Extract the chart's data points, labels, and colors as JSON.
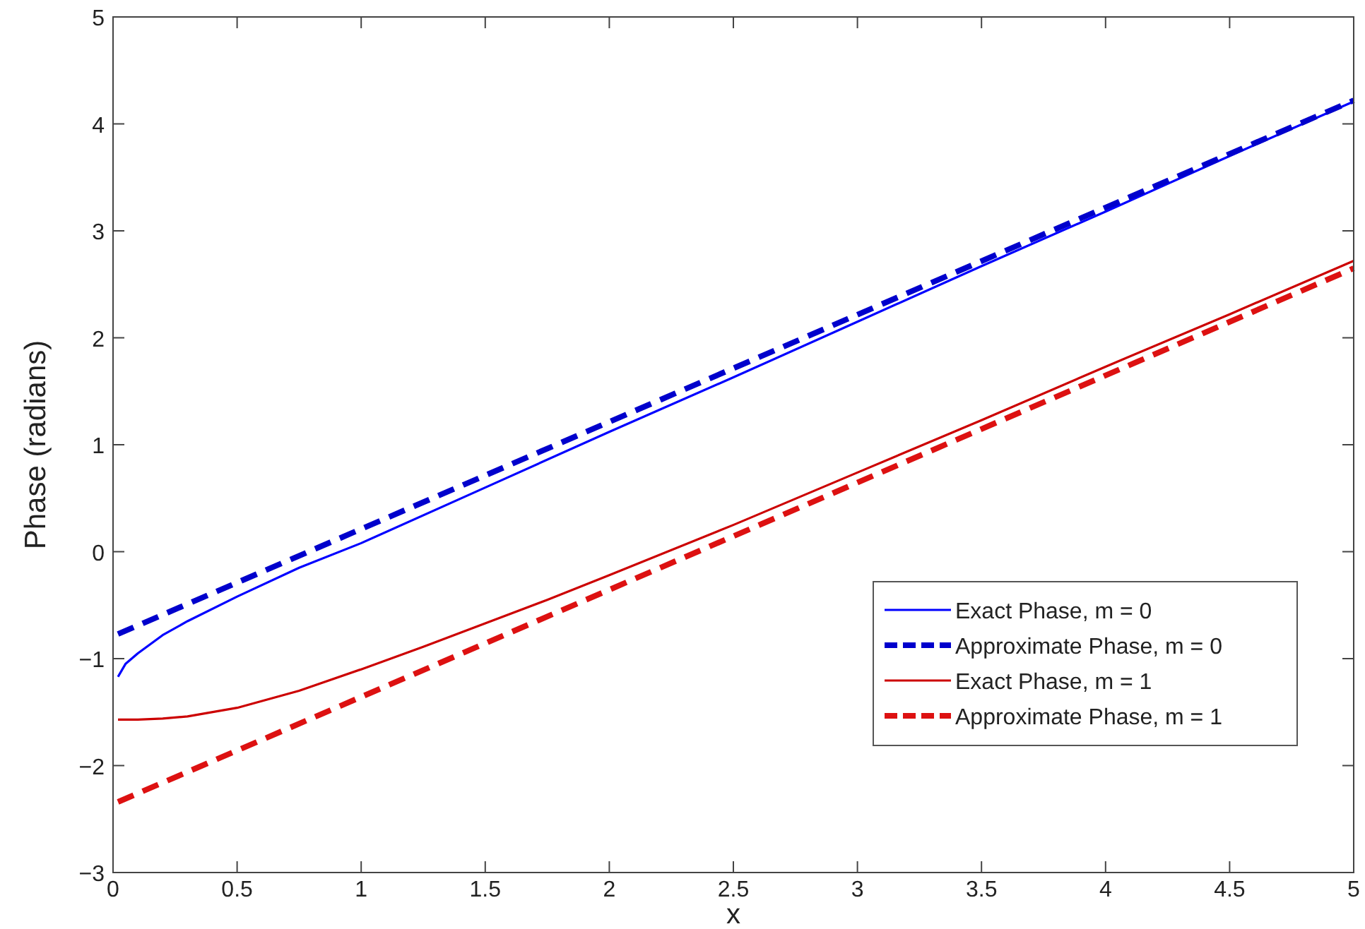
{
  "chart_data": {
    "type": "line",
    "xlabel": "x",
    "ylabel": "Phase (radians)",
    "xlim": [
      0,
      5
    ],
    "ylim": [
      -3,
      5
    ],
    "xticks": [
      0,
      0.5,
      1,
      1.5,
      2,
      2.5,
      3,
      3.5,
      4,
      4.5,
      5
    ],
    "yticks": [
      -3,
      -2,
      -1,
      0,
      1,
      2,
      3,
      4,
      5
    ],
    "grid": false,
    "legend": "bottom right",
    "series": [
      {
        "name": "Exact Phase, m = 0",
        "color": "#0000ff",
        "line_style": "solid",
        "x": [
          0.02,
          0.05,
          0.1,
          0.2,
          0.3,
          0.5,
          0.75,
          1,
          1.5,
          2,
          2.5,
          3,
          3.5,
          4,
          4.5,
          5
        ],
        "values": [
          -1.17,
          -1.05,
          -0.95,
          -0.78,
          -0.65,
          -0.42,
          -0.15,
          0.08,
          0.6,
          1.12,
          1.63,
          2.15,
          2.67,
          3.18,
          3.7,
          4.21
        ]
      },
      {
        "name": "Approximate Phase, m = 0",
        "color": "#0000cc",
        "line_style": "dashed",
        "x": [
          0.02,
          5
        ],
        "values": [
          -0.77,
          4.22
        ]
      },
      {
        "name": "Exact Phase, m = 1",
        "color": "#cc0000",
        "line_style": "solid",
        "x": [
          0.02,
          0.1,
          0.2,
          0.3,
          0.5,
          0.75,
          1,
          1.25,
          1.5,
          1.75,
          2,
          2.5,
          3,
          3.5,
          4,
          4.5,
          5
        ],
        "values": [
          -1.57,
          -1.57,
          -1.56,
          -1.54,
          -1.46,
          -1.3,
          -1.1,
          -0.89,
          -0.67,
          -0.45,
          -0.22,
          0.25,
          0.74,
          1.23,
          1.73,
          2.22,
          2.72
        ]
      },
      {
        "name": "Approximate Phase, m = 1",
        "color": "#dd1111",
        "line_style": "dashed",
        "x": [
          0.02,
          5
        ],
        "values": [
          -2.34,
          2.65
        ]
      }
    ]
  }
}
